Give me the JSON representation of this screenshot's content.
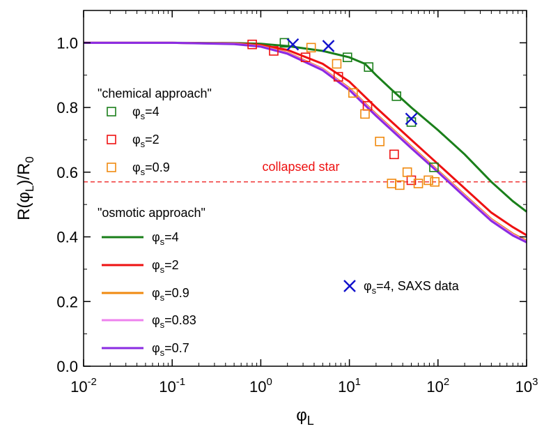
{
  "chart_data": {
    "type": "scatter",
    "xscale": "log",
    "xlim": [
      0.01,
      1000
    ],
    "ylim": [
      0.0,
      1.1
    ],
    "grid": false,
    "xlabel": {
      "main": "φ",
      "sub": "L"
    },
    "ylabel": {
      "a": "R(φ",
      "sub": "L",
      "b": ")/R",
      "sub2": "0"
    },
    "xticks": [
      {
        "value": 0.01,
        "base": "10",
        "exp": "-2"
      },
      {
        "value": 0.1,
        "base": "10",
        "exp": "-1"
      },
      {
        "value": 1,
        "base": "10",
        "exp": "0"
      },
      {
        "value": 10,
        "base": "10",
        "exp": "1"
      },
      {
        "value": 100,
        "base": "10",
        "exp": "2"
      },
      {
        "value": 1000,
        "base": "10",
        "exp": "3"
      }
    ],
    "yticks": [
      {
        "value": 0.0,
        "label": "0.0"
      },
      {
        "value": 0.2,
        "label": "0.2"
      },
      {
        "value": 0.4,
        "label": "0.4"
      },
      {
        "value": 0.6,
        "label": "0.6"
      },
      {
        "value": 0.8,
        "label": "0.8"
      },
      {
        "value": 1.0,
        "label": "1.0"
      }
    ],
    "colors": {
      "green": "#1a7f1a",
      "red": "#ee1111",
      "orange": "#f08a10",
      "pink": "#ee82ee",
      "purple": "#8a2be2",
      "blue": "#1111cc"
    },
    "legend_groups": {
      "chemical": "\"chemical approach\"",
      "osmotic": "\"osmotic approach\""
    },
    "marker_series": [
      {
        "phi": "φ",
        "sub": "s",
        "eq": "=4",
        "color": "#1a7f1a",
        "points": [
          [
            1.85,
            1.0
          ],
          [
            9.5,
            0.955
          ],
          [
            16.5,
            0.925
          ],
          [
            34,
            0.835
          ],
          [
            50,
            0.755
          ],
          [
            90,
            0.615
          ]
        ]
      },
      {
        "phi": "φ",
        "sub": "s",
        "eq": "=2",
        "color": "#ee1111",
        "points": [
          [
            0.8,
            0.995
          ],
          [
            1.4,
            0.975
          ],
          [
            3.2,
            0.955
          ],
          [
            7.5,
            0.895
          ],
          [
            16,
            0.805
          ],
          [
            32,
            0.655
          ],
          [
            50,
            0.575
          ]
        ]
      },
      {
        "phi": "φ",
        "sub": "s",
        "eq": "=0.9",
        "color": "#f08a10",
        "points": [
          [
            3.7,
            0.985
          ],
          [
            7.2,
            0.935
          ],
          [
            11,
            0.845
          ],
          [
            15,
            0.78
          ],
          [
            22,
            0.695
          ],
          [
            30,
            0.565
          ],
          [
            37,
            0.56
          ],
          [
            45,
            0.6
          ],
          [
            60,
            0.565
          ],
          [
            78,
            0.575
          ],
          [
            92,
            0.57
          ]
        ]
      }
    ],
    "line_series": [
      {
        "phi": "φ",
        "sub": "s",
        "eq": "=4",
        "color": "#1a7f1a",
        "points": [
          [
            0.01,
            1.0
          ],
          [
            0.1,
            1.0
          ],
          [
            0.5,
            0.999
          ],
          [
            1,
            0.997
          ],
          [
            2,
            0.99
          ],
          [
            5,
            0.975
          ],
          [
            10,
            0.955
          ],
          [
            15,
            0.935
          ],
          [
            20,
            0.9
          ],
          [
            30,
            0.855
          ],
          [
            50,
            0.8
          ],
          [
            100,
            0.73
          ],
          [
            200,
            0.655
          ],
          [
            400,
            0.57
          ],
          [
            700,
            0.51
          ],
          [
            1000,
            0.478
          ]
        ]
      },
      {
        "phi": "φ",
        "sub": "s",
        "eq": "=2",
        "color": "#ee1111",
        "points": [
          [
            0.01,
            1.0
          ],
          [
            0.1,
            1.0
          ],
          [
            0.5,
            0.998
          ],
          [
            1,
            0.993
          ],
          [
            2,
            0.978
          ],
          [
            5,
            0.935
          ],
          [
            10,
            0.88
          ],
          [
            20,
            0.8
          ],
          [
            50,
            0.7
          ],
          [
            100,
            0.625
          ],
          [
            200,
            0.55
          ],
          [
            400,
            0.475
          ],
          [
            700,
            0.43
          ],
          [
            1000,
            0.405
          ]
        ]
      },
      {
        "phi": "φ",
        "sub": "s",
        "eq": "=0.9",
        "color": "#f08a10",
        "points": [
          [
            0.01,
            1.0
          ],
          [
            0.1,
            1.0
          ],
          [
            0.5,
            0.997
          ],
          [
            1,
            0.99
          ],
          [
            2,
            0.97
          ],
          [
            5,
            0.92
          ],
          [
            10,
            0.86
          ],
          [
            20,
            0.78
          ],
          [
            50,
            0.68
          ],
          [
            100,
            0.605
          ],
          [
            200,
            0.53
          ],
          [
            400,
            0.455
          ],
          [
            700,
            0.41
          ],
          [
            1000,
            0.388
          ]
        ]
      },
      {
        "phi": "φ",
        "sub": "s",
        "eq": "=0.83",
        "color": "#ee82ee",
        "points": [
          [
            0.01,
            1.0
          ],
          [
            0.1,
            1.0
          ],
          [
            0.5,
            0.997
          ],
          [
            1,
            0.989
          ],
          [
            2,
            0.968
          ],
          [
            5,
            0.918
          ],
          [
            10,
            0.857
          ],
          [
            20,
            0.777
          ],
          [
            50,
            0.677
          ],
          [
            100,
            0.602
          ],
          [
            200,
            0.527
          ],
          [
            400,
            0.452
          ],
          [
            700,
            0.407
          ],
          [
            1000,
            0.385
          ]
        ]
      },
      {
        "phi": "φ",
        "sub": "s",
        "eq": "=0.7",
        "color": "#8a2be2",
        "points": [
          [
            0.01,
            1.0
          ],
          [
            0.1,
            1.0
          ],
          [
            0.5,
            0.996
          ],
          [
            1,
            0.988
          ],
          [
            2,
            0.966
          ],
          [
            5,
            0.915
          ],
          [
            10,
            0.854
          ],
          [
            20,
            0.774
          ],
          [
            50,
            0.674
          ],
          [
            100,
            0.6
          ],
          [
            200,
            0.524
          ],
          [
            400,
            0.449
          ],
          [
            700,
            0.404
          ],
          [
            1000,
            0.383
          ]
        ]
      }
    ],
    "saxs_series": {
      "phi": "φ",
      "sub": "s",
      "eq": "=4, SAXS data",
      "color": "#1111cc",
      "points": [
        [
          2.3,
          0.995
        ],
        [
          5.8,
          0.99
        ],
        [
          50,
          0.765
        ]
      ]
    },
    "reference_line": {
      "y": 0.57,
      "label": "collapsed star",
      "color": "#ee1111"
    }
  }
}
